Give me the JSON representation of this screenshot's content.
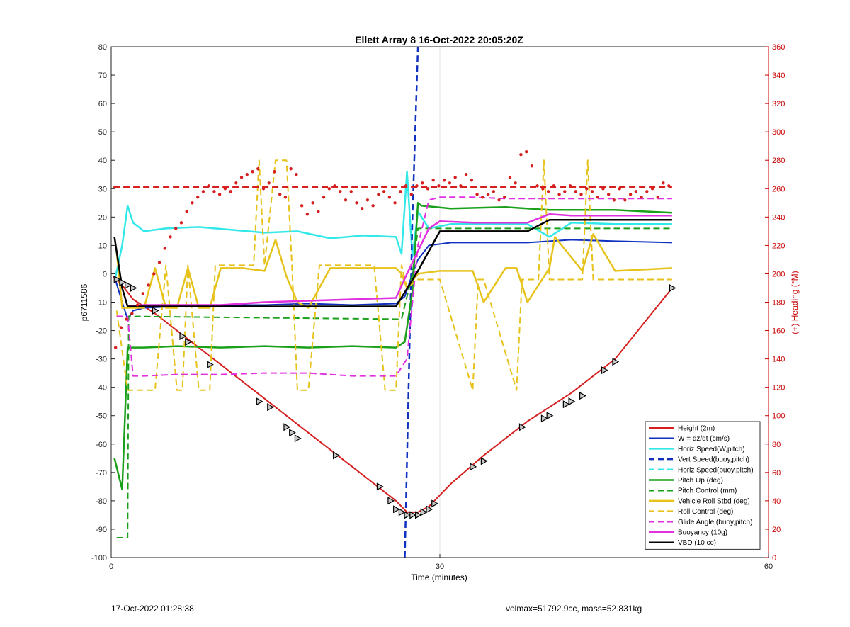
{
  "chart_data": {
    "type": "line",
    "title": "Ellett Array 8 16-Oct-2022 20:05:20Z",
    "xlabel": "Time (minutes)",
    "ylabel": "p6711586",
    "ylabel_right": "(+) Heading (°M)",
    "xlim": [
      0,
      60
    ],
    "ylim": [
      -100,
      80
    ],
    "ylim_right": [
      0,
      360
    ],
    "xticks": [
      0,
      30,
      60
    ],
    "yticks": [
      -100,
      -90,
      -80,
      -70,
      -60,
      -50,
      -40,
      -30,
      -20,
      -10,
      0,
      10,
      20,
      30,
      40,
      50,
      60,
      70,
      80
    ],
    "yticks_right": [
      0,
      20,
      40,
      60,
      80,
      100,
      120,
      140,
      160,
      180,
      200,
      220,
      240,
      260,
      280,
      300,
      320,
      340,
      360
    ],
    "grid": "x-only at 30",
    "legend_position": "bottom-right",
    "colors": {
      "red": "#d62020",
      "blue": "#1030c0",
      "cyan": "#33e8e8",
      "green": "#1aa01a",
      "yellow": "#e6c21a",
      "magenta": "#e030e0",
      "black": "#000000",
      "heading_axis": "#c80000"
    },
    "legend": [
      {
        "label": "Height (2m)",
        "color": "#d62020",
        "dash": false
      },
      {
        "label": "W = dz/dt (cm/s)",
        "color": "#1030c0",
        "dash": false
      },
      {
        "label": "Horiz Speed(W,pitch)",
        "color": "#33e8e8",
        "dash": false
      },
      {
        "label": "Vert Speed(buoy,pitch)",
        "color": "#1030c0",
        "dash": true
      },
      {
        "label": "Horiz Speed(buoy,pitch)",
        "color": "#33e8e8",
        "dash": true
      },
      {
        "label": "Pitch Up (deg)",
        "color": "#1aa01a",
        "dash": false
      },
      {
        "label": "Pitch Control (mm)",
        "color": "#1aa01a",
        "dash": true
      },
      {
        "label": "Vehicle Roll Stbd (deg)",
        "color": "#e6c21a",
        "dash": false
      },
      {
        "label": "Roll Control (deg)",
        "color": "#e6c21a",
        "dash": true
      },
      {
        "label": "Glide Angle (buoy,pitch)",
        "color": "#e030e0",
        "dash": true
      },
      {
        "label": "Buoyancy (10g)",
        "color": "#e030e0",
        "dash": false
      },
      {
        "label": "VBD (10 cc)",
        "color": "#000000",
        "dash": false
      }
    ],
    "series": [
      {
        "name": "Height (2m)",
        "color": "#d62020",
        "dash": false,
        "width": 2,
        "x": [
          0.2,
          1,
          2,
          4,
          6,
          8,
          10,
          14,
          18,
          22,
          26,
          27,
          28,
          29,
          31,
          34,
          38,
          42,
          46,
          51.2
        ],
        "y": [
          -1,
          -4,
          -9,
          -14,
          -20,
          -26,
          -32,
          -44,
          -56,
          -68,
          -80,
          -84,
          -84,
          -82,
          -74,
          -64,
          -52,
          -42,
          -30,
          -5
        ]
      },
      {
        "name": "W = dz/dt (cm/s)",
        "color": "#1030c0",
        "dash": false,
        "width": 2,
        "x": [
          0.3,
          1,
          1.5,
          2,
          3,
          6,
          10,
          14,
          18,
          22,
          26,
          26.8,
          27.5,
          28,
          29,
          31,
          34,
          38,
          42,
          46,
          51.2
        ],
        "y": [
          -1,
          -10,
          -16,
          -13,
          -12,
          -11.5,
          -11,
          -11,
          -10.5,
          -11,
          -10.5,
          -8,
          0,
          5,
          10,
          11,
          11,
          11,
          12,
          11.5,
          11
        ]
      },
      {
        "name": "Horiz Speed(W,pitch)",
        "color": "#33e8e8",
        "dash": false,
        "width": 2.5,
        "x": [
          0.4,
          1,
          1.5,
          2,
          3,
          5,
          8,
          11,
          14,
          17,
          20,
          23,
          26,
          26.5,
          27,
          27.5,
          28,
          29,
          31,
          34,
          38,
          40,
          42,
          46,
          51.2
        ],
        "y": [
          -1,
          10,
          24,
          18,
          15,
          16,
          16.5,
          15.5,
          14.5,
          15,
          12.5,
          13.5,
          13,
          7,
          36,
          6,
          22,
          16,
          17.5,
          17.5,
          17.5,
          13,
          18,
          17.5,
          17.5
        ]
      },
      {
        "name": "Vert Speed(buoy,pitch)",
        "color": "#1030c0",
        "dash": true,
        "width": 2.5,
        "x": [
          26.8,
          27.5,
          28
        ],
        "y": [
          -100,
          20,
          80
        ]
      },
      {
        "name": "Pitch Up (deg)",
        "color": "#1aa01a",
        "dash": false,
        "width": 2.5,
        "x": [
          0.3,
          1,
          1.5,
          3,
          6,
          10,
          14,
          18,
          22,
          26,
          26.8,
          27.5,
          28,
          28.3,
          31,
          36,
          40,
          46,
          51.2
        ],
        "y": [
          -65,
          -76,
          -26,
          -26,
          -25.5,
          -26,
          -25.5,
          -26,
          -25.5,
          -26,
          -24,
          -6,
          25,
          24,
          23,
          23.5,
          22.5,
          22.5,
          21.5
        ]
      },
      {
        "name": "Pitch Control (mm)",
        "color": "#1aa01a",
        "dash": true,
        "width": 2,
        "x": [
          0.5,
          1.5,
          1.6,
          26.5,
          27.5,
          28,
          51.2
        ],
        "y": [
          -93,
          -93,
          -15,
          -16,
          0,
          16,
          16
        ]
      },
      {
        "name": "Vehicle Roll Stbd (deg)",
        "color": "#e6c21a",
        "dash": false,
        "width": 2.5,
        "x": [
          0.5,
          1,
          2,
          3,
          4,
          5,
          6,
          7,
          8,
          9,
          10,
          12,
          14,
          15,
          16,
          17,
          18,
          20,
          22,
          24,
          26,
          26.5,
          27,
          28,
          30,
          33,
          34,
          36,
          37,
          38,
          40,
          40.5,
          43,
          44,
          46,
          51.2
        ],
        "y": [
          8,
          -12,
          -12,
          -12,
          2,
          -12,
          -12,
          2,
          -12,
          -12,
          2,
          2,
          1,
          12,
          -1,
          -10,
          -12,
          2,
          2,
          2,
          2,
          0,
          -5,
          0,
          1,
          1,
          -10,
          2,
          2,
          -10,
          2,
          13,
          1,
          14,
          1,
          2
        ]
      },
      {
        "name": "Roll Control (deg)",
        "color": "#e6c21a",
        "dash": true,
        "width": 2,
        "x": [
          0.5,
          1.5,
          3,
          4,
          5,
          6,
          6.5,
          7,
          8,
          9,
          9.5,
          13,
          13.5,
          14,
          15,
          16,
          16.5,
          17,
          18,
          19,
          20,
          21,
          24,
          25,
          26,
          26.5,
          27,
          28,
          29,
          30,
          33,
          33.5,
          34,
          37,
          37.5,
          38,
          39,
          39.5,
          40,
          42,
          43,
          43.5,
          44,
          46,
          51.2
        ],
        "y": [
          -13,
          -41,
          -41,
          -41,
          3,
          -41,
          -41,
          3,
          -41,
          -41,
          3,
          3,
          40,
          3,
          40,
          40,
          3,
          -41,
          -41,
          3,
          3,
          3,
          3,
          -41,
          -41,
          3,
          -5,
          -2,
          -2,
          -2,
          -41,
          -2,
          -2,
          -41,
          -2,
          -2,
          -2,
          40,
          -2,
          -2,
          -2,
          40,
          -2,
          -2,
          -2
        ]
      },
      {
        "name": "Glide Angle (buoy,pitch)",
        "color": "#e030e0",
        "dash": true,
        "width": 2,
        "x": [
          0.5,
          1.5,
          2,
          3,
          6,
          10,
          14,
          18,
          22,
          26,
          27,
          28,
          29,
          30,
          33,
          36,
          40,
          46,
          51.2
        ],
        "y": [
          -15,
          -15,
          -36,
          -36,
          -35.5,
          -35.5,
          -35,
          -35,
          -36,
          -36,
          -30,
          10,
          26,
          27,
          27,
          26.5,
          26.5,
          26.5,
          26.5
        ]
      },
      {
        "name": "Buoyancy (10g)",
        "color": "#e030e0",
        "dash": false,
        "width": 2.5,
        "x": [
          1.5,
          3,
          6,
          10,
          14,
          18,
          22,
          26,
          27,
          28,
          29,
          30,
          33,
          36,
          38,
          40,
          42,
          46,
          51.2
        ],
        "y": [
          -11.5,
          -11,
          -11,
          -11,
          -10,
          -9.5,
          -9,
          -8.5,
          0,
          8,
          16,
          18.5,
          18,
          18,
          18,
          21,
          20.5,
          20.5,
          20.5
        ]
      },
      {
        "name": "VBD (10 cc)",
        "color": "#000000",
        "dash": false,
        "width": 2.5,
        "x": [
          0.3,
          1,
          1.5,
          6,
          10,
          14,
          18,
          22,
          26,
          28,
          30,
          32,
          36,
          38,
          40,
          42,
          46,
          51.2
        ],
        "y": [
          13,
          -5,
          -11.5,
          -11.5,
          -11.5,
          -11.5,
          -11.5,
          -11.5,
          -11.5,
          1,
          15,
          15,
          15,
          15,
          19,
          19,
          19,
          19
        ]
      },
      {
        "name": "Heading reference",
        "color": "#d62020",
        "dash": true,
        "width": 2.5,
        "axis": "right",
        "x": [
          0.2,
          51.2
        ],
        "y": [
          261,
          261
        ]
      }
    ],
    "heading_points": {
      "color": "#d62020",
      "axis": "right",
      "x": [
        0.4,
        0.9,
        1.4,
        1.9,
        2.4,
        2.9,
        3.4,
        3.9,
        4.4,
        4.9,
        5.4,
        5.9,
        6.4,
        6.9,
        7.4,
        7.9,
        8.4,
        8.9,
        9.4,
        9.9,
        10.4,
        10.9,
        11.4,
        11.9,
        12.4,
        12.9,
        13.4,
        13.9,
        14.4,
        14.9,
        15.4,
        15.9,
        16.4,
        16.9,
        17.4,
        17.9,
        18.4,
        18.9,
        19.4,
        19.9,
        20.4,
        20.9,
        21.4,
        21.9,
        22.4,
        22.9,
        23.4,
        23.9,
        24.4,
        24.9,
        25.4,
        25.9,
        26.4,
        26.9,
        27.4,
        27.9,
        28.4,
        28.9,
        29.4,
        29.9,
        30.4,
        30.9,
        31.4,
        31.9,
        32.4,
        32.9,
        33.4,
        33.9,
        34.4,
        34.9,
        35.4,
        35.9,
        36.4,
        36.9,
        37.4,
        37.9,
        38.4,
        38.9,
        39.4,
        39.9,
        40.4,
        40.9,
        41.4,
        41.9,
        42.4,
        42.9,
        43.4,
        43.9,
        44.4,
        44.9,
        45.4,
        45.9,
        46.4,
        46.9,
        47.4,
        47.9,
        48.4,
        48.9,
        49.4,
        49.9,
        50.4,
        50.9
      ],
      "y": [
        148,
        162,
        168,
        172,
        178,
        186,
        192,
        200,
        208,
        218,
        226,
        232,
        236,
        244,
        250,
        254,
        258,
        262,
        258,
        256,
        260,
        258,
        264,
        268,
        270,
        272,
        274,
        260,
        264,
        272,
        256,
        254,
        274,
        270,
        248,
        242,
        250,
        244,
        254,
        260,
        262,
        258,
        252,
        258,
        250,
        246,
        252,
        248,
        256,
        258,
        254,
        250,
        258,
        262,
        256,
        262,
        264,
        260,
        266,
        262,
        266,
        264,
        268,
        262,
        270,
        266,
        256,
        254,
        256,
        258,
        252,
        254,
        268,
        264,
        284,
        286,
        276,
        262,
        260,
        258,
        262,
        256,
        258,
        262,
        258,
        256,
        260,
        258,
        254,
        260,
        256,
        252,
        260,
        252,
        256,
        258,
        254,
        258,
        260,
        254,
        264,
        262
      ]
    },
    "height_markers": {
      "x": [
        0.5,
        1.0,
        1.5,
        2.0,
        4.0,
        6.5,
        7.0,
        9.0,
        13.5,
        14.5,
        16.0,
        16.5,
        17.0,
        20.5,
        24.5,
        25.5,
        26.0,
        26.5,
        27.0,
        27.5,
        28.0,
        28.5,
        29.0,
        29.5,
        33.0,
        34.0,
        37.5,
        39.5,
        40.0,
        41.5,
        42.0,
        43.0,
        45.0,
        46.0,
        51.2
      ],
      "y": [
        -2,
        -3,
        -4,
        -5,
        -13,
        -22,
        -24,
        -32,
        -45,
        -47,
        -54,
        -56,
        -58,
        -64,
        -75,
        -80,
        -83,
        -84,
        -85,
        -85,
        -85,
        -84,
        -83,
        -81,
        -68,
        -66,
        -54,
        -51,
        -50,
        -46,
        -45,
        -43,
        -34,
        -31,
        -5
      ]
    }
  },
  "footer": {
    "left": "17-Oct-2022 01:28:38",
    "right": "volmax=51792.9cc, mass=52.831kg"
  }
}
